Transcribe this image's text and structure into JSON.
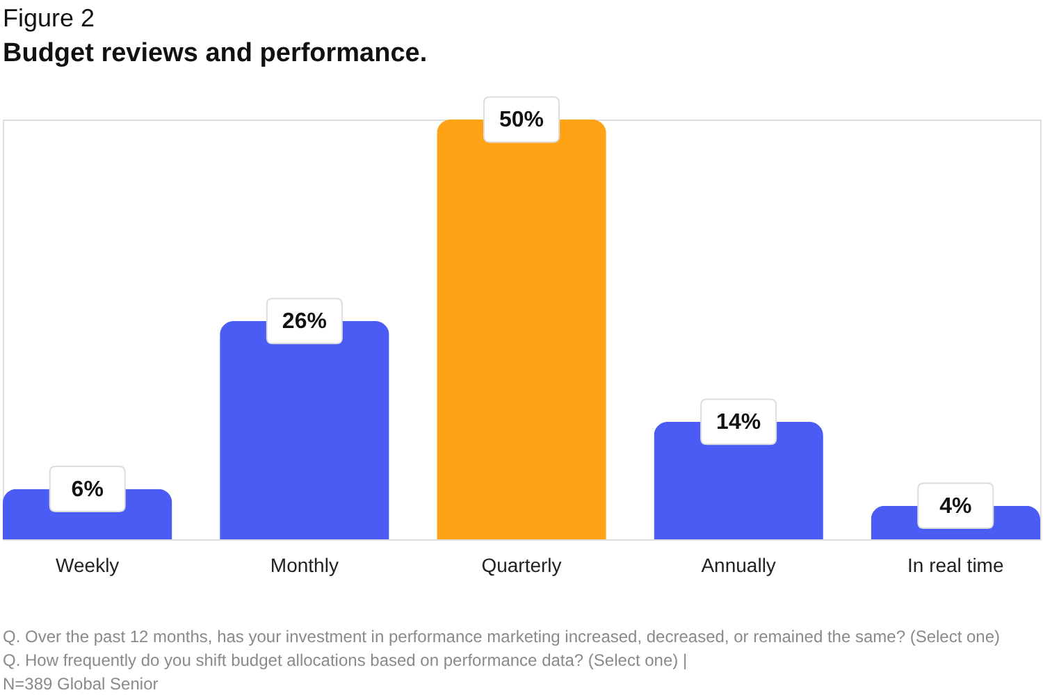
{
  "chart_data": {
    "type": "bar",
    "title": "Figure 2",
    "subtitle": "Budget reviews and performance.",
    "categories": [
      "Weekly",
      "Monthly",
      "Quarterly",
      "Annually",
      "In real time"
    ],
    "values": [
      6,
      26,
      50,
      14,
      4
    ],
    "colors": [
      "#4a5cf4",
      "#4a5cf4",
      "#ffa215",
      "#4a5cf4",
      "#4a5cf4"
    ],
    "value_labels": [
      "6%",
      "26%",
      "50%",
      "14%",
      "4%"
    ],
    "annotations": [
      "Q. Over the past 12 months, has your investment in performance marketing increased, decreased, or remained the same? (Select one)",
      "Q. How frequently do you shift budget allocations based on performance data? (Select one) |",
      "N=389 Global Senior"
    ]
  }
}
